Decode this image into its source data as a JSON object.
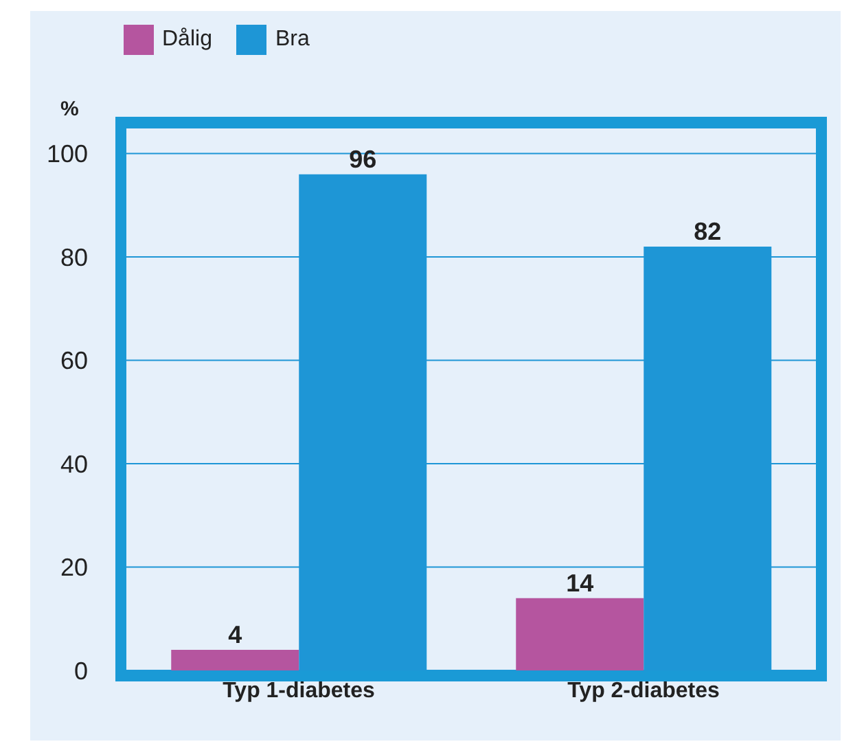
{
  "chart_data": {
    "type": "bar",
    "ylabel": "%",
    "categories": [
      "Typ 1-diabetes",
      "Typ 2-diabetes"
    ],
    "series": [
      {
        "name": "Dålig",
        "color": "#b5559f",
        "values": [
          4,
          14
        ]
      },
      {
        "name": "Bra",
        "color": "#1e96d6",
        "values": [
          96,
          82
        ]
      }
    ],
    "ylim": [
      0,
      105
    ],
    "yticks": [
      0,
      20,
      40,
      60,
      80,
      100
    ],
    "grid": "y",
    "legend": "top left",
    "data_labels": true
  }
}
